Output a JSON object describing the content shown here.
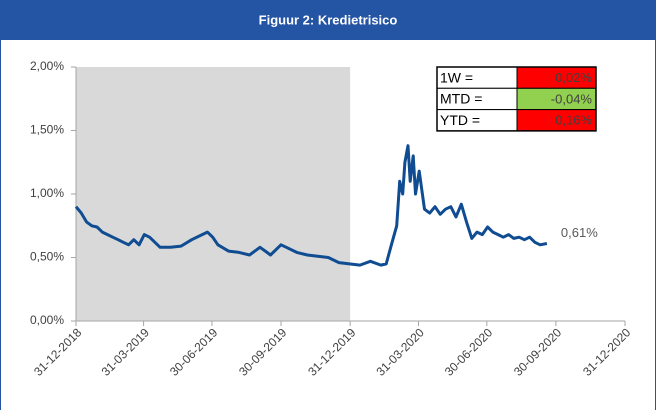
{
  "chart_data": {
    "type": "line",
    "title": "Figuur 2: Kredietrisico",
    "xlim": [
      "2018-12-31",
      "2020-12-31"
    ],
    "xticks": [
      {
        "value": "2018-12-31",
        "label": "31-12-2018"
      },
      {
        "value": "2019-03-31",
        "label": "31-03-2019"
      },
      {
        "value": "2019-06-30",
        "label": "30-06-2019"
      },
      {
        "value": "2019-09-30",
        "label": "30-09-2019"
      },
      {
        "value": "2019-12-31",
        "label": "31-12-2019"
      },
      {
        "value": "2020-03-31",
        "label": "31-03-2020"
      },
      {
        "value": "2020-06-30",
        "label": "30-06-2020"
      },
      {
        "value": "2020-09-30",
        "label": "30-09-2020"
      },
      {
        "value": "2020-12-31",
        "label": "31-12-2020"
      }
    ],
    "ylim": [
      0,
      2
    ],
    "yticks": [
      {
        "value": 0,
        "label": "0,00%"
      },
      {
        "value": 0.5,
        "label": "0,50%"
      },
      {
        "value": 1,
        "label": "1,00%"
      },
      {
        "value": 1.5,
        "label": "1,50%"
      },
      {
        "value": 2,
        "label": "2,00%"
      }
    ],
    "shaded_range": [
      "2018-12-31",
      "2019-12-31"
    ],
    "shade_color": "#d9d9d9",
    "x": [
      "2018-12-31",
      "2019-01-07",
      "2019-01-14",
      "2019-01-21",
      "2019-01-28",
      "2019-02-04",
      "2019-02-11",
      "2019-02-18",
      "2019-02-25",
      "2019-03-04",
      "2019-03-11",
      "2019-03-18",
      "2019-03-25",
      "2019-04-01",
      "2019-04-08",
      "2019-04-15",
      "2019-04-22",
      "2019-05-06",
      "2019-05-20",
      "2019-06-03",
      "2019-06-17",
      "2019-06-24",
      "2019-07-01",
      "2019-07-08",
      "2019-07-22",
      "2019-08-05",
      "2019-08-19",
      "2019-09-02",
      "2019-09-09",
      "2019-09-16",
      "2019-09-30",
      "2019-10-07",
      "2019-10-21",
      "2019-11-04",
      "2019-11-18",
      "2019-12-02",
      "2019-12-16",
      "2019-12-30",
      "2020-01-13",
      "2020-01-27",
      "2020-02-10",
      "2020-02-17",
      "2020-02-24",
      "2020-03-02",
      "2020-03-06",
      "2020-03-10",
      "2020-03-13",
      "2020-03-17",
      "2020-03-20",
      "2020-03-24",
      "2020-03-27",
      "2020-04-01",
      "2020-04-08",
      "2020-04-15",
      "2020-04-22",
      "2020-04-29",
      "2020-05-06",
      "2020-05-13",
      "2020-05-20",
      "2020-05-27",
      "2020-06-03",
      "2020-06-10",
      "2020-06-17",
      "2020-06-24",
      "2020-07-01",
      "2020-07-08",
      "2020-07-15",
      "2020-07-22",
      "2020-07-29",
      "2020-08-05",
      "2020-08-12",
      "2020-08-19",
      "2020-08-26",
      "2020-09-02",
      "2020-09-09",
      "2020-09-18"
    ],
    "series": [
      {
        "name": "Kredietrisico",
        "color": "#0f4c92",
        "values": [
          0.9,
          0.85,
          0.78,
          0.75,
          0.74,
          0.7,
          0.68,
          0.66,
          0.64,
          0.62,
          0.6,
          0.64,
          0.6,
          0.68,
          0.66,
          0.62,
          0.58,
          0.58,
          0.59,
          0.64,
          0.68,
          0.7,
          0.66,
          0.6,
          0.55,
          0.54,
          0.52,
          0.58,
          0.55,
          0.52,
          0.6,
          0.58,
          0.54,
          0.52,
          0.51,
          0.5,
          0.46,
          0.45,
          0.44,
          0.47,
          0.44,
          0.45,
          0.6,
          0.75,
          1.1,
          1.0,
          1.25,
          1.38,
          1.1,
          1.3,
          1.0,
          1.18,
          0.88,
          0.85,
          0.9,
          0.84,
          0.88,
          0.9,
          0.82,
          0.92,
          0.78,
          0.65,
          0.7,
          0.68,
          0.74,
          0.7,
          0.68,
          0.66,
          0.68,
          0.65,
          0.66,
          0.64,
          0.66,
          0.62,
          0.6,
          0.61
        ]
      }
    ],
    "end_label": "0,61%",
    "inset_table": [
      {
        "label": "1W =",
        "value": "0,02%",
        "color": "#ff0000"
      },
      {
        "label": "MTD =",
        "value": "-0,04%",
        "color": "#92d050"
      },
      {
        "label": "YTD =",
        "value": "0,16%",
        "color": "#ff0000"
      }
    ]
  }
}
